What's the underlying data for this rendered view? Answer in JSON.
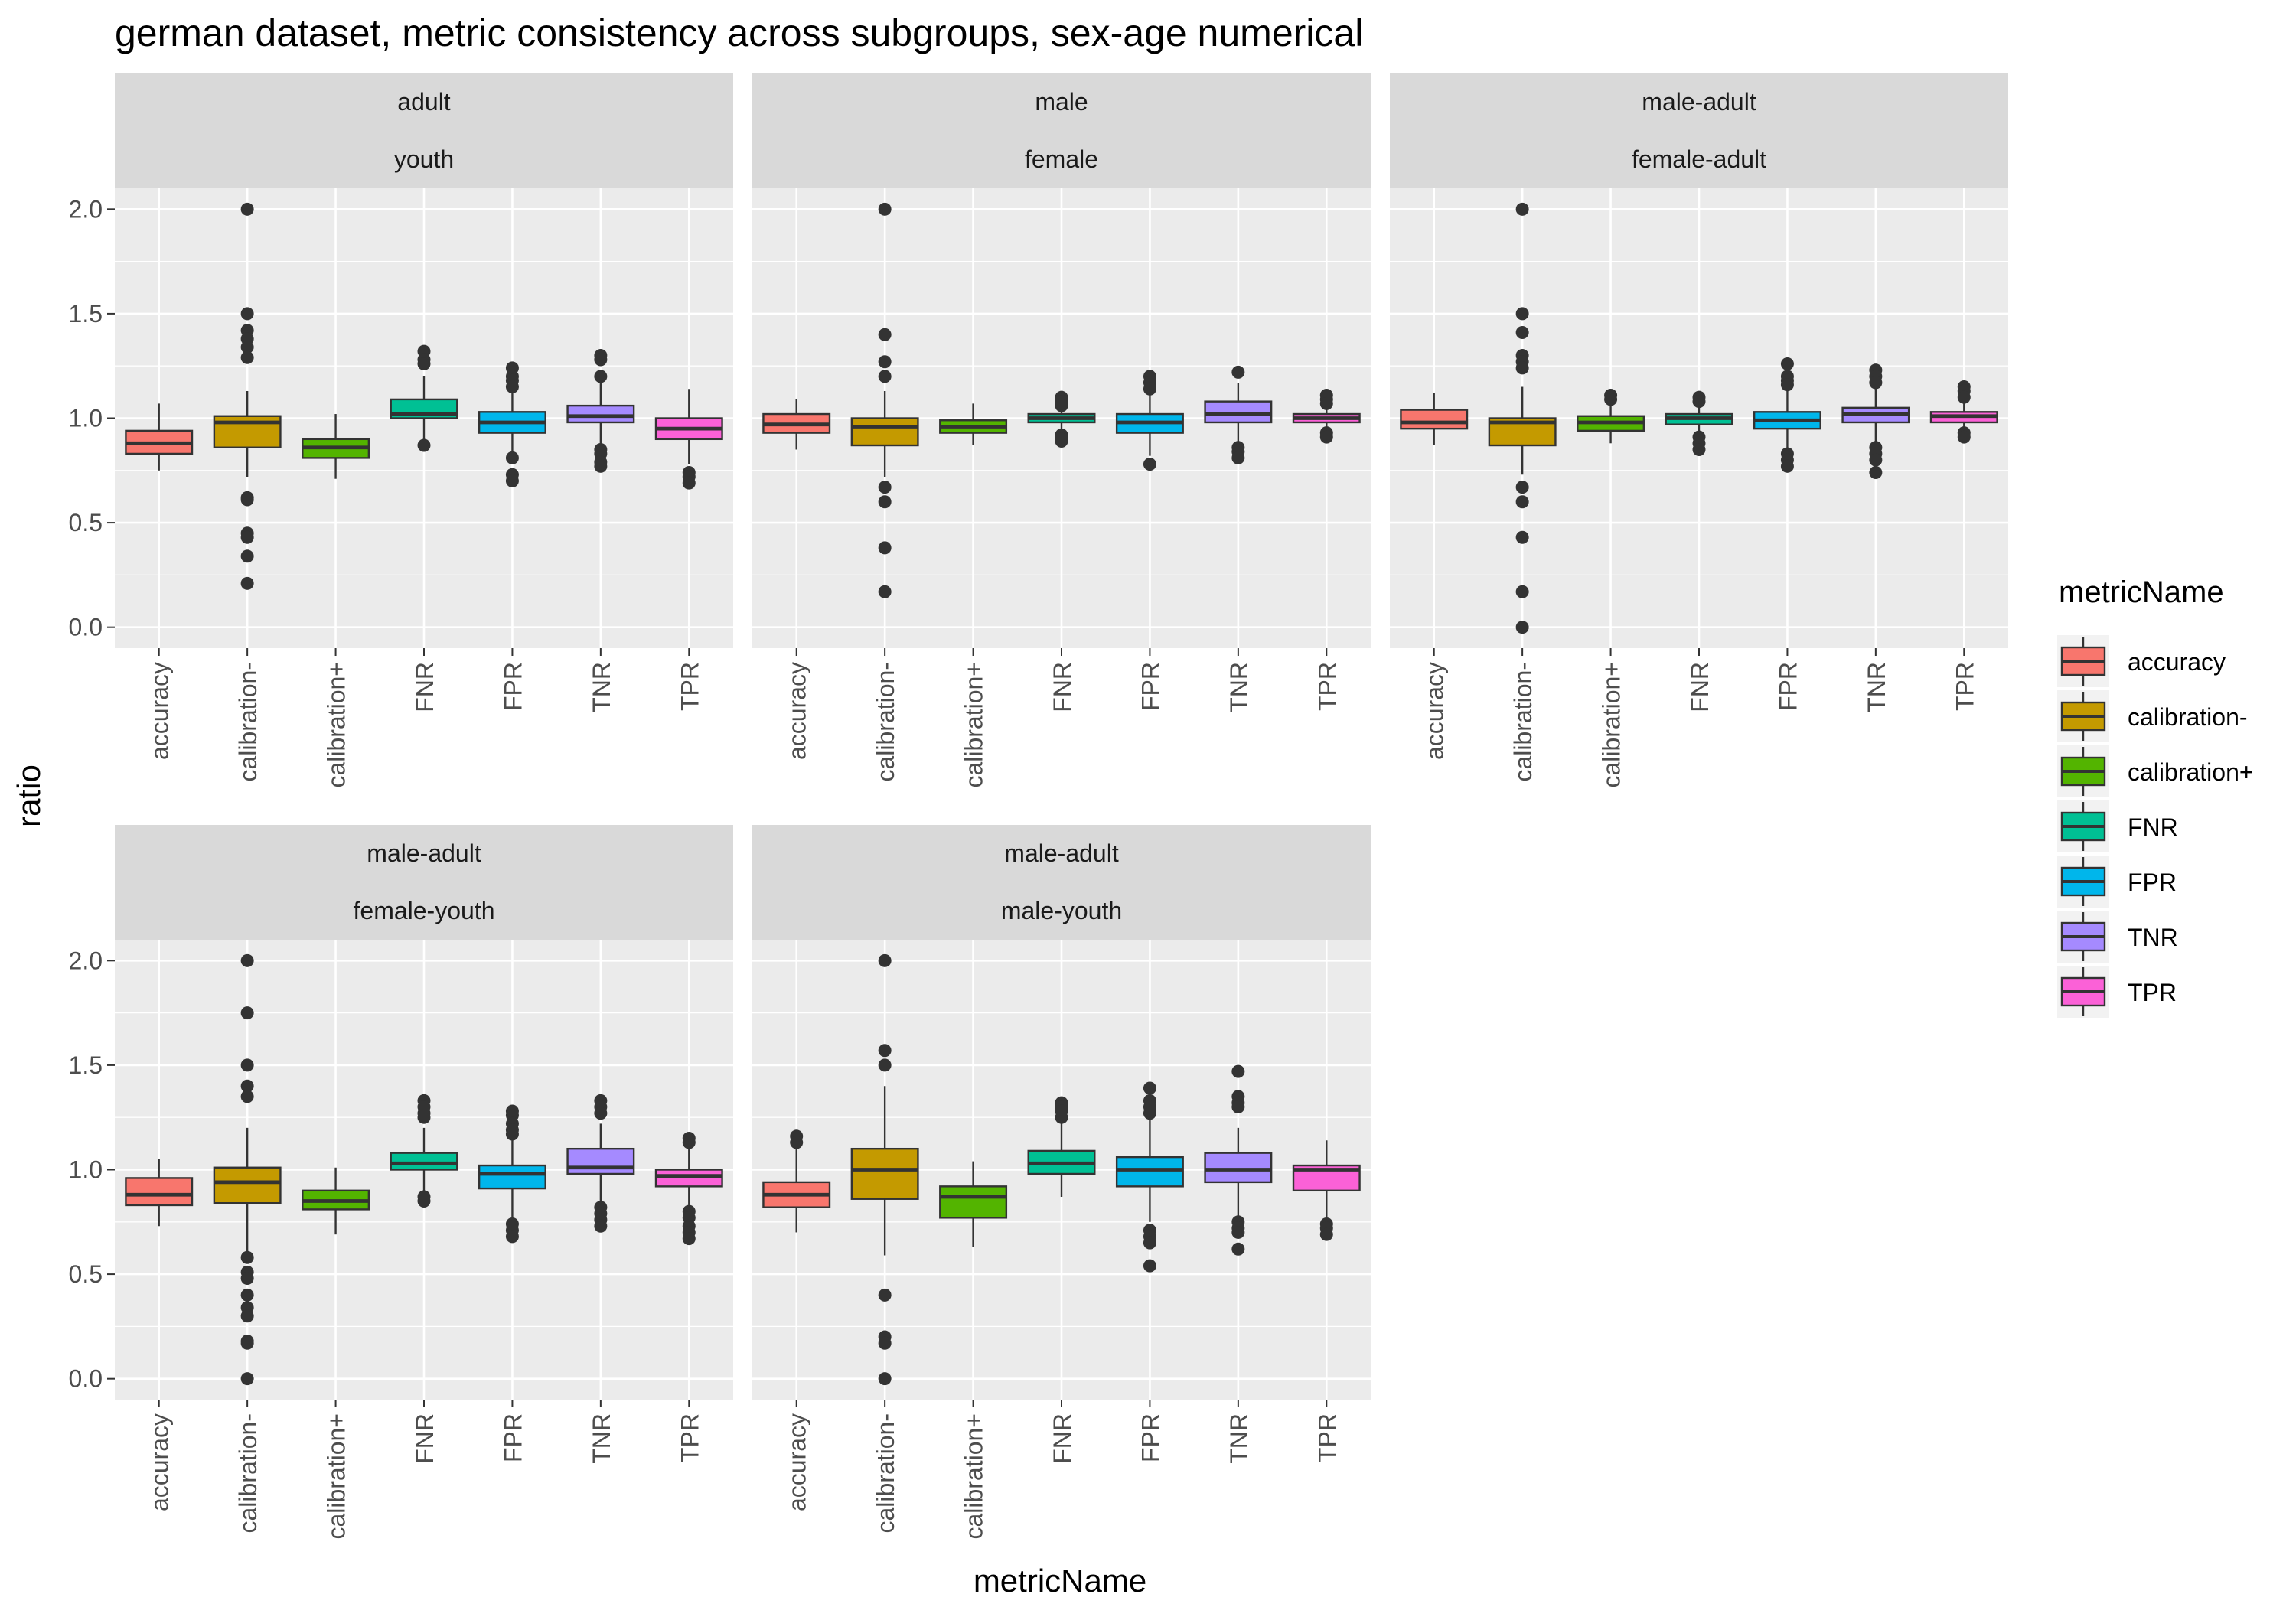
{
  "chart_data": {
    "type": "boxplot",
    "title": "german dataset, metric consistency across subgroups, sex-age numerical",
    "xlabel": "metricName",
    "ylabel": "ratio",
    "ylim": [
      -0.1,
      2.1
    ],
    "yticks": [
      0.0,
      0.5,
      1.0,
      1.5,
      2.0
    ],
    "ytick_labels": [
      "0.0",
      "0.5",
      "1.0",
      "1.5",
      "2.0"
    ],
    "grid": true,
    "legend_position": "right",
    "legend_title": "metricName",
    "categories": [
      "accuracy",
      "calibration-",
      "calibration+",
      "FNR",
      "FPR",
      "TNR",
      "TPR"
    ],
    "colors": {
      "accuracy": "#F8766D",
      "calibration-": "#C49A00",
      "calibration+": "#53B400",
      "FNR": "#00C094",
      "FPR": "#00B6EB",
      "TNR": "#A58AFF",
      "TPR": "#FB61D7"
    },
    "panels": [
      {
        "strip_top": "adult",
        "strip_bottom": "youth",
        "boxes": [
          {
            "metric": "accuracy",
            "min": 0.75,
            "q1": 0.83,
            "median": 0.88,
            "q3": 0.94,
            "max": 1.07,
            "outliers": []
          },
          {
            "metric": "calibration-",
            "min": 0.72,
            "q1": 0.86,
            "median": 0.98,
            "q3": 1.01,
            "max": 1.13,
            "outliers": [
              2.0,
              1.5,
              1.42,
              1.38,
              1.34,
              1.29,
              0.62,
              0.61,
              0.45,
              0.43,
              0.34,
              0.21
            ]
          },
          {
            "metric": "calibration+",
            "min": 0.71,
            "q1": 0.81,
            "median": 0.86,
            "q3": 0.9,
            "max": 1.02,
            "outliers": []
          },
          {
            "metric": "FNR",
            "min": 0.88,
            "q1": 1.0,
            "median": 1.02,
            "q3": 1.09,
            "max": 1.2,
            "outliers": [
              1.32,
              1.28,
              1.26,
              0.87
            ]
          },
          {
            "metric": "FPR",
            "min": 0.82,
            "q1": 0.93,
            "median": 0.98,
            "q3": 1.03,
            "max": 1.15,
            "outliers": [
              1.24,
              1.2,
              1.18,
              1.15,
              0.81,
              0.73,
              0.7
            ]
          },
          {
            "metric": "TNR",
            "min": 0.85,
            "q1": 0.98,
            "median": 1.01,
            "q3": 1.06,
            "max": 1.17,
            "outliers": [
              1.3,
              1.28,
              1.2,
              0.85,
              0.83,
              0.79,
              0.77
            ]
          },
          {
            "metric": "TPR",
            "min": 0.78,
            "q1": 0.9,
            "median": 0.95,
            "q3": 1.0,
            "max": 1.14,
            "outliers": [
              0.74,
              0.72,
              0.69
            ]
          }
        ]
      },
      {
        "strip_top": "male",
        "strip_bottom": "female",
        "boxes": [
          {
            "metric": "accuracy",
            "min": 0.85,
            "q1": 0.93,
            "median": 0.97,
            "q3": 1.02,
            "max": 1.09,
            "outliers": []
          },
          {
            "metric": "calibration-",
            "min": 0.72,
            "q1": 0.87,
            "median": 0.96,
            "q3": 1.0,
            "max": 1.13,
            "outliers": [
              2.0,
              1.4,
              1.27,
              1.2,
              0.67,
              0.6,
              0.38,
              0.17
            ]
          },
          {
            "metric": "calibration+",
            "min": 0.87,
            "q1": 0.93,
            "median": 0.96,
            "q3": 0.99,
            "max": 1.07,
            "outliers": []
          },
          {
            "metric": "FNR",
            "min": 0.95,
            "q1": 0.98,
            "median": 1.0,
            "q3": 1.02,
            "max": 1.06,
            "outliers": [
              1.1,
              1.08,
              1.06,
              0.92,
              0.9,
              0.89
            ]
          },
          {
            "metric": "FPR",
            "min": 0.82,
            "q1": 0.93,
            "median": 0.98,
            "q3": 1.02,
            "max": 1.13,
            "outliers": [
              1.2,
              1.17,
              1.14,
              0.78
            ]
          },
          {
            "metric": "TNR",
            "min": 0.86,
            "q1": 0.98,
            "median": 1.02,
            "q3": 1.08,
            "max": 1.17,
            "outliers": [
              1.22,
              0.86,
              0.84,
              0.81
            ]
          },
          {
            "metric": "TPR",
            "min": 0.93,
            "q1": 0.98,
            "median": 1.0,
            "q3": 1.02,
            "max": 1.07,
            "outliers": [
              1.11,
              1.09,
              1.07,
              0.93,
              0.91
            ]
          }
        ]
      },
      {
        "strip_top": "male-adult",
        "strip_bottom": "female-adult",
        "boxes": [
          {
            "metric": "accuracy",
            "min": 0.87,
            "q1": 0.95,
            "median": 0.98,
            "q3": 1.04,
            "max": 1.12,
            "outliers": []
          },
          {
            "metric": "calibration-",
            "min": 0.73,
            "q1": 0.87,
            "median": 0.98,
            "q3": 1.0,
            "max": 1.15,
            "outliers": [
              2.0,
              1.5,
              1.41,
              1.3,
              1.27,
              1.24,
              0.67,
              0.6,
              0.43,
              0.17,
              0.0
            ]
          },
          {
            "metric": "calibration+",
            "min": 0.88,
            "q1": 0.94,
            "median": 0.98,
            "q3": 1.01,
            "max": 1.06,
            "outliers": [
              1.11,
              1.09
            ]
          },
          {
            "metric": "FNR",
            "min": 0.93,
            "q1": 0.97,
            "median": 1.0,
            "q3": 1.02,
            "max": 1.07,
            "outliers": [
              1.1,
              1.08,
              0.91,
              0.88,
              0.85
            ]
          },
          {
            "metric": "FPR",
            "min": 0.86,
            "q1": 0.95,
            "median": 0.99,
            "q3": 1.03,
            "max": 1.13,
            "outliers": [
              1.26,
              1.2,
              1.18,
              1.16,
              0.83,
              0.8,
              0.77
            ]
          },
          {
            "metric": "TNR",
            "min": 0.88,
            "q1": 0.98,
            "median": 1.02,
            "q3": 1.05,
            "max": 1.15,
            "outliers": [
              1.23,
              1.2,
              1.17,
              0.86,
              0.83,
              0.8,
              0.74
            ]
          },
          {
            "metric": "TPR",
            "min": 0.94,
            "q1": 0.98,
            "median": 1.01,
            "q3": 1.03,
            "max": 1.08,
            "outliers": [
              1.15,
              1.13,
              1.1,
              0.93,
              0.91
            ]
          }
        ]
      },
      {
        "strip_top": "male-adult",
        "strip_bottom": "female-youth",
        "boxes": [
          {
            "metric": "accuracy",
            "min": 0.73,
            "q1": 0.83,
            "median": 0.88,
            "q3": 0.96,
            "max": 1.05,
            "outliers": []
          },
          {
            "metric": "calibration-",
            "min": 0.6,
            "q1": 0.84,
            "median": 0.94,
            "q3": 1.01,
            "max": 1.2,
            "outliers": [
              2.0,
              1.75,
              1.5,
              1.4,
              1.35,
              0.58,
              0.51,
              0.48,
              0.4,
              0.34,
              0.3,
              0.18,
              0.17,
              0.0
            ]
          },
          {
            "metric": "calibration+",
            "min": 0.69,
            "q1": 0.81,
            "median": 0.85,
            "q3": 0.9,
            "max": 1.01,
            "outliers": []
          },
          {
            "metric": "FNR",
            "min": 0.88,
            "q1": 1.0,
            "median": 1.03,
            "q3": 1.08,
            "max": 1.2,
            "outliers": [
              1.33,
              1.3,
              1.27,
              1.25,
              0.87,
              0.85
            ]
          },
          {
            "metric": "FPR",
            "min": 0.76,
            "q1": 0.91,
            "median": 0.98,
            "q3": 1.02,
            "max": 1.15,
            "outliers": [
              1.28,
              1.26,
              1.22,
              1.19,
              1.17,
              0.74,
              0.71,
              0.68
            ]
          },
          {
            "metric": "TNR",
            "min": 0.84,
            "q1": 0.98,
            "median": 1.01,
            "q3": 1.1,
            "max": 1.22,
            "outliers": [
              1.33,
              1.3,
              1.27,
              0.82,
              0.79,
              0.76,
              0.73
            ]
          },
          {
            "metric": "TPR",
            "min": 0.83,
            "q1": 0.92,
            "median": 0.97,
            "q3": 1.0,
            "max": 1.1,
            "outliers": [
              1.15,
              1.13,
              0.8,
              0.77,
              0.73,
              0.7,
              0.67
            ]
          }
        ]
      },
      {
        "strip_top": "male-adult",
        "strip_bottom": "male-youth",
        "boxes": [
          {
            "metric": "accuracy",
            "min": 0.7,
            "q1": 0.82,
            "median": 0.88,
            "q3": 0.94,
            "max": 1.1,
            "outliers": [
              1.16,
              1.13
            ]
          },
          {
            "metric": "calibration-",
            "min": 0.59,
            "q1": 0.86,
            "median": 1.0,
            "q3": 1.1,
            "max": 1.4,
            "outliers": [
              2.0,
              1.57,
              1.5,
              0.4,
              0.2,
              0.17,
              0.0
            ]
          },
          {
            "metric": "calibration+",
            "min": 0.63,
            "q1": 0.77,
            "median": 0.87,
            "q3": 0.92,
            "max": 1.04,
            "outliers": []
          },
          {
            "metric": "FNR",
            "min": 0.87,
            "q1": 0.98,
            "median": 1.03,
            "q3": 1.09,
            "max": 1.22,
            "outliers": [
              1.32,
              1.3,
              1.28,
              1.25
            ]
          },
          {
            "metric": "FPR",
            "min": 0.75,
            "q1": 0.92,
            "median": 1.0,
            "q3": 1.06,
            "max": 1.24,
            "outliers": [
              1.39,
              1.33,
              1.3,
              1.27,
              0.71,
              0.68,
              0.65,
              0.54
            ]
          },
          {
            "metric": "TNR",
            "min": 0.78,
            "q1": 0.94,
            "median": 1.0,
            "q3": 1.08,
            "max": 1.2,
            "outliers": [
              1.47,
              1.35,
              1.32,
              1.3,
              0.75,
              0.72,
              0.7,
              0.62
            ]
          },
          {
            "metric": "TPR",
            "min": 0.76,
            "q1": 0.9,
            "median": 1.0,
            "q3": 1.02,
            "max": 1.14,
            "outliers": [
              0.74,
              0.72,
              0.69
            ]
          }
        ]
      }
    ]
  }
}
